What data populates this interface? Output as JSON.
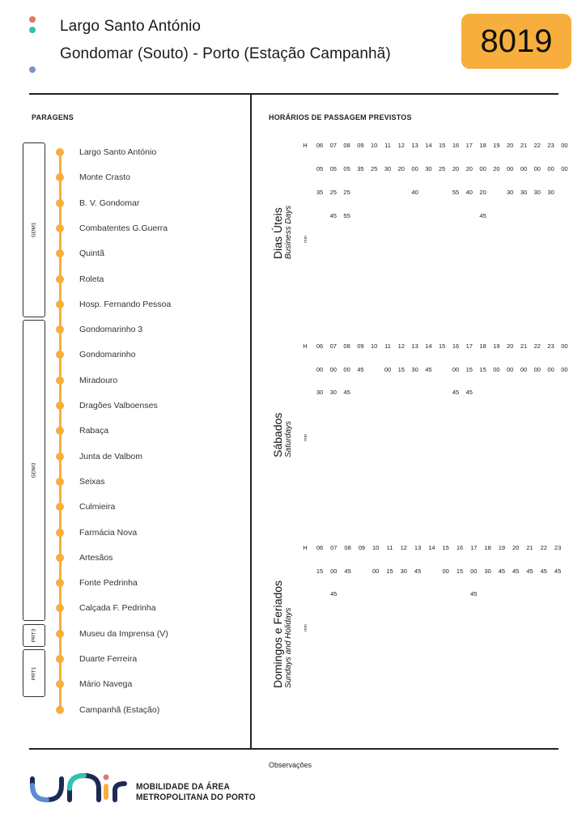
{
  "header": {
    "origin": "Largo Santo António",
    "route": "Gondomar (Souto) - Porto (Estação Campanhã)",
    "line_number": "8019",
    "badge_color": "#f7ae3c",
    "dot_colors": [
      "#e07a5f",
      "#2fc4b2",
      "#f7ae3c",
      "#7b93c4"
    ]
  },
  "stops_section": {
    "title": "PARAGENS",
    "stops": [
      "Largo Santo António",
      "Monte Crasto",
      "B. V. Gondomar",
      "Combatentes G.Guerra",
      "Quintã",
      "Roleta",
      "Hosp. Fernando Pessoa",
      "Gondomarinho 3",
      "Gondomarinho",
      "Miradouro",
      "Dragões Valboenses",
      "Rabaça",
      "Junta de Valbom",
      "Seixas",
      "Culmieira",
      "Farmácia Nova",
      "Artesãos",
      "Fonte Pedrinha",
      "Calçada F. Pedrinha",
      "Museu da Imprensa (V)",
      "Duarte Ferreira",
      "Mário Navega",
      "Campanhã (Estação)"
    ],
    "zones": [
      {
        "code": "GDM1",
        "from": 0,
        "to": 6
      },
      {
        "code": "GDM3",
        "from": 7,
        "to": 18
      },
      {
        "code": "PRT3",
        "from": 19,
        "to": 19
      },
      {
        "code": "PRT1",
        "from": 20,
        "to": 21
      }
    ]
  },
  "schedule_section": {
    "title": "HORÁRIOS DE PASSAGEM PREVISTOS",
    "hour_label": "H",
    "min_label": "min",
    "tables": [
      {
        "name": "Dias Úteis",
        "name_en": "Business Days",
        "hours": [
          "06",
          "07",
          "08",
          "09",
          "10",
          "11",
          "12",
          "13",
          "14",
          "15",
          "16",
          "17",
          "18",
          "19",
          "20",
          "21",
          "22",
          "23",
          "00"
        ],
        "rows": [
          [
            "05",
            "05",
            "05",
            "35",
            "25",
            "30",
            "20",
            "00",
            "30",
            "25",
            "20",
            "20",
            "00",
            "20",
            "00",
            "00",
            "00",
            "00",
            "00"
          ],
          [
            "35",
            "25",
            "25",
            "",
            "",
            "",
            "",
            "40",
            "",
            "",
            "55",
            "40",
            "20",
            "",
            "30",
            "30",
            "30",
            "30",
            ""
          ],
          [
            "",
            "45",
            "55",
            "",
            "",
            "",
            "",
            "",
            "",
            "",
            "",
            "",
            "45",
            "",
            "",
            "",
            "",
            "",
            ""
          ]
        ]
      },
      {
        "name": "Sábados",
        "name_en": "Saturdays",
        "hours": [
          "06",
          "07",
          "08",
          "09",
          "10",
          "11",
          "12",
          "13",
          "14",
          "15",
          "16",
          "17",
          "18",
          "19",
          "20",
          "21",
          "22",
          "23",
          "00"
        ],
        "rows": [
          [
            "00",
            "00",
            "00",
            "45",
            "",
            "00",
            "15",
            "30",
            "45",
            "",
            "00",
            "15",
            "15",
            "00",
            "00",
            "00",
            "00",
            "00",
            "00"
          ],
          [
            "30",
            "30",
            "45",
            "",
            "",
            "",
            "",
            "",
            "",
            "",
            "45",
            "45",
            "",
            "",
            "",
            "",
            "",
            "",
            ""
          ]
        ]
      },
      {
        "name": "Domingos e Feriados",
        "name_en": "Sundays and Holidays",
        "hours": [
          "06",
          "07",
          "08",
          "09",
          "10",
          "11",
          "12",
          "13",
          "14",
          "15",
          "16",
          "17",
          "18",
          "19",
          "20",
          "21",
          "22",
          "23"
        ],
        "rows": [
          [
            "15",
            "00",
            "45",
            "",
            "00",
            "15",
            "30",
            "45",
            "",
            "00",
            "15",
            "00",
            "30",
            "45",
            "45",
            "45",
            "45",
            "45"
          ],
          [
            "",
            "45",
            "",
            "",
            "",
            "",
            "",
            "",
            "",
            "",
            "",
            "45",
            "",
            "",
            "",
            "",
            "",
            ""
          ]
        ]
      }
    ]
  },
  "footer": {
    "observations_label": "Observações",
    "logo_line1": "MOBILIDADE DA ÁREA",
    "logo_line2": "METROPOLITANA DO PORTO",
    "logo_word": "UNIR"
  }
}
